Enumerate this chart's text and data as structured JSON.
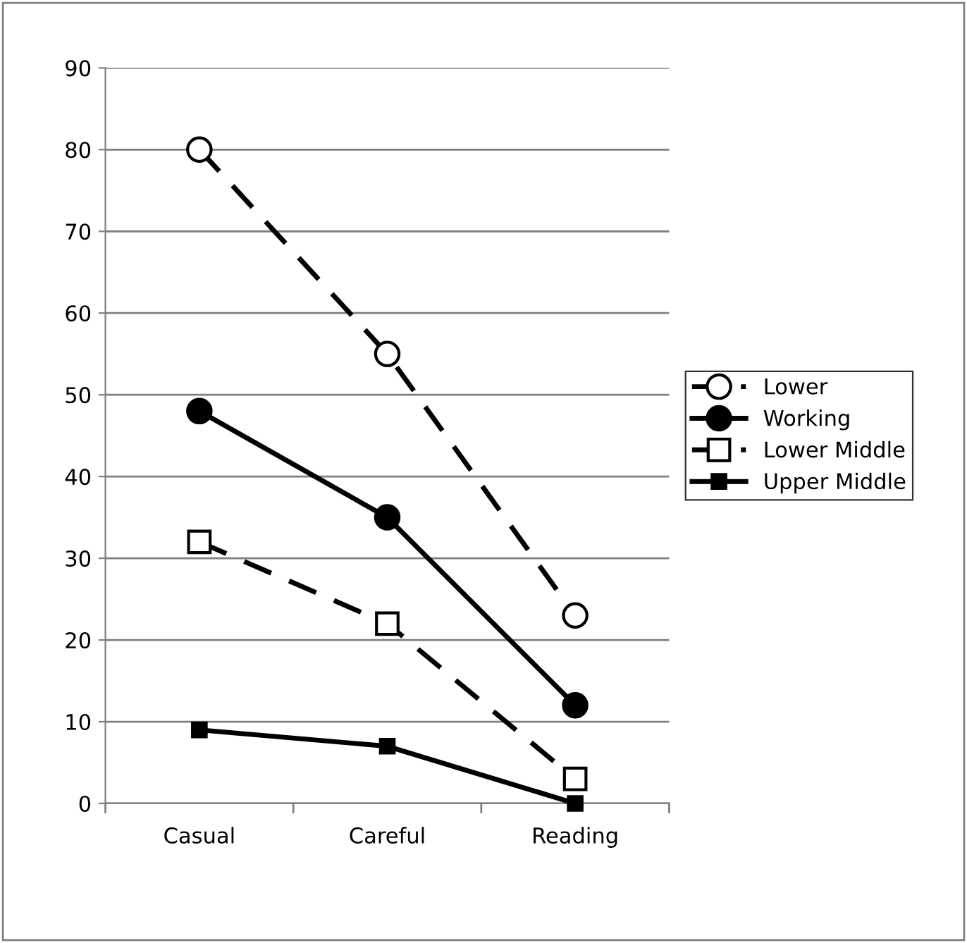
{
  "chart_data": {
    "type": "line",
    "categories": [
      "Casual",
      "Careful",
      "Reading"
    ],
    "series": [
      {
        "name": "Lower",
        "color": "#000000",
        "values": [
          80,
          55,
          23
        ],
        "marker": "circle",
        "line_style": "dashed"
      },
      {
        "name": "Working",
        "color": "#000000",
        "values": [
          48,
          35,
          12
        ],
        "marker": "circle",
        "line_style": "solid"
      },
      {
        "name": "Lower Middle",
        "color": "#000000",
        "values": [
          32,
          22,
          3
        ],
        "marker": "square",
        "line_style": "dashed"
      },
      {
        "name": "Upper Middle",
        "color": "#000000",
        "values": [
          9,
          7,
          0
        ],
        "marker": "square",
        "line_style": "solid"
      }
    ],
    "ylim": [
      0,
      90
    ],
    "yticks": [
      0,
      10,
      20,
      30,
      40,
      50,
      60,
      70,
      80,
      90
    ],
    "grid": "y",
    "legend": "right"
  }
}
